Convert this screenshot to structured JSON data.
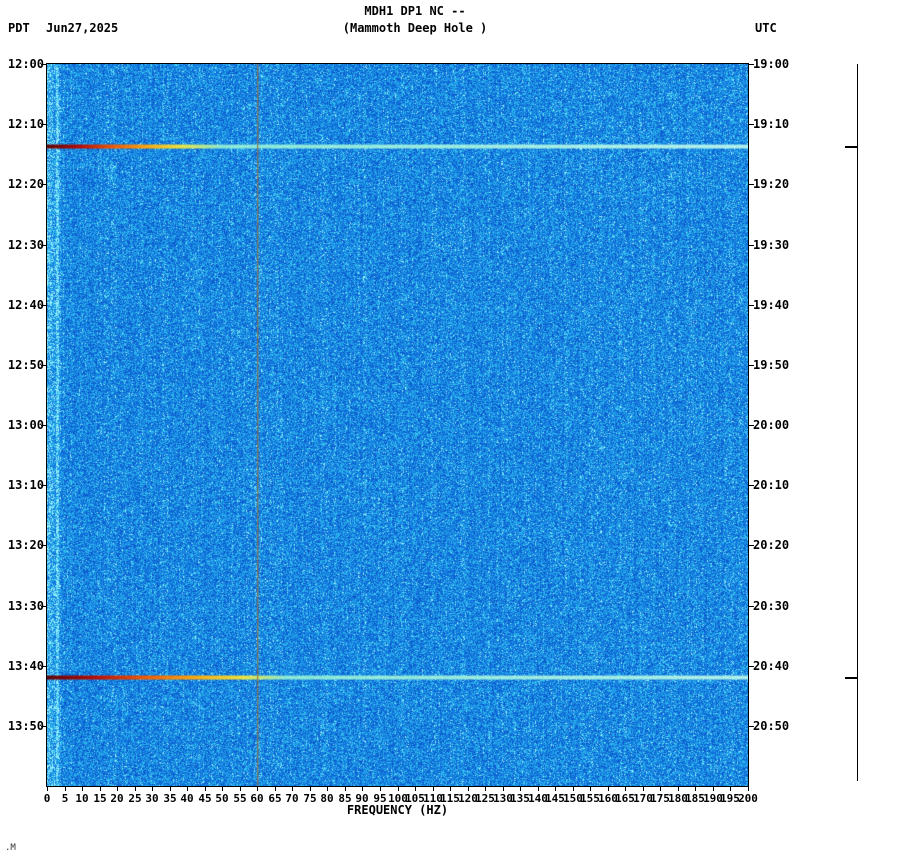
{
  "header": {
    "title": "MDH1 DP1 NC --",
    "subtitle": "(Mammoth Deep Hole )",
    "left_tz": "PDT",
    "date": "Jun27,2025",
    "right_tz": "UTC"
  },
  "footer": {
    "mark": ".M"
  },
  "chart_data": {
    "type": "heatmap",
    "subtype": "seismic spectrogram",
    "station": "MDH1 DP1 NC",
    "station_name": "Mammoth Deep Hole",
    "title": "MDH1 DP1 NC -- (Mammoth Deep Hole )",
    "xlabel": "FREQUENCY (HZ)",
    "x_range": [
      0,
      200
    ],
    "x_ticks": [
      0,
      5,
      10,
      15,
      20,
      25,
      30,
      35,
      40,
      45,
      50,
      55,
      60,
      65,
      70,
      75,
      80,
      85,
      90,
      95,
      100,
      105,
      110,
      115,
      120,
      125,
      130,
      135,
      140,
      145,
      150,
      155,
      160,
      165,
      170,
      175,
      180,
      185,
      190,
      195,
      200
    ],
    "time_span_minutes": 120,
    "time_start_pdt": "12:00",
    "time_end_pdt": "14:00",
    "left_time_labels": [
      "12:00",
      "12:10",
      "12:20",
      "12:30",
      "12:40",
      "12:50",
      "13:00",
      "13:10",
      "13:20",
      "13:30",
      "13:40",
      "13:50"
    ],
    "right_time_labels": [
      "19:00",
      "19:10",
      "19:20",
      "19:30",
      "19:40",
      "19:50",
      "20:00",
      "20:10",
      "20:20",
      "20:30",
      "20:40",
      "20:50"
    ],
    "powerline_hz": 60,
    "events": [
      {
        "time_pdt": "12:14",
        "time_utc": "19:14",
        "minutes": 13.6,
        "strong_to_hz": 38,
        "description": "broadband event: dark red at low freq grading through orange/yellow near 38 Hz, pale cyan tail to 200 Hz"
      },
      {
        "time_pdt": "13:42",
        "time_utc": "20:42",
        "minutes": 101.9,
        "strong_to_hz": 56,
        "description": "broadband event: dark red at low freq grading through orange/yellow near 56 Hz, pale cyan tail to 200 Hz"
      }
    ],
    "colors": {
      "noise_low": "#0a50c8",
      "noise_mid": "#1688e6",
      "noise_high": "#3cd2f0",
      "speckle": "#96f0fa",
      "powerline": "#966937",
      "event_palette": [
        "#640000",
        "#be0a00",
        "#f55a00",
        "#ffaa0a",
        "#f0e63c"
      ],
      "event_tail": "#8cebd7"
    },
    "grid": false,
    "legend": false
  }
}
